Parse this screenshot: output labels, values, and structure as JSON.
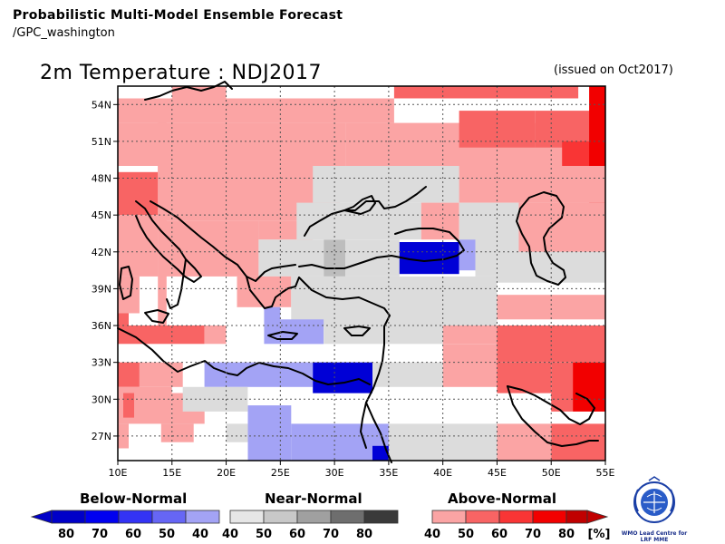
{
  "header": {
    "title": "Probabilistic Multi-Model Ensemble Forecast",
    "source": "/GPC_washington",
    "map_title": "2m Temperature : NDJ2017",
    "issued": "(issued on Oct2017)"
  },
  "map": {
    "lon_range": [
      10,
      55
    ],
    "lat_range": [
      25,
      55.5
    ],
    "lon_labels": [
      "10E",
      "15E",
      "20E",
      "25E",
      "30E",
      "35E",
      "40E",
      "45E",
      "50E",
      "55E"
    ],
    "lat_labels": [
      "54N",
      "51N",
      "48N",
      "45N",
      "42N",
      "39N",
      "36N",
      "33N",
      "30N",
      "27N"
    ],
    "colors": {
      "A40": "#fba4a4",
      "A50": "#f86464",
      "A60": "#f93535",
      "A70": "#f20000",
      "N40": "#dcdcdc",
      "N50": "#bdbdbd",
      "B40": "#a3a3f5",
      "B50": "#5757f2",
      "B70": "#0000d6"
    },
    "categories": [
      {
        "key": "A40",
        "label": "Above-Normal 40-50%"
      },
      {
        "key": "A50",
        "label": "Above-Normal 50-60%"
      },
      {
        "key": "A60",
        "label": "Above-Normal 60-70%"
      },
      {
        "key": "A70",
        "label": "Above-Normal 70-80%"
      },
      {
        "key": "N40",
        "label": "Near-Normal 40-50%"
      },
      {
        "key": "N50",
        "label": "Near-Normal 50-60%"
      },
      {
        "key": "B40",
        "label": "Below-Normal 40-50%"
      },
      {
        "key": "B50",
        "label": "Below-Normal 50-60%"
      },
      {
        "key": "B70",
        "label": "Below-Normal 70-80%"
      }
    ]
  },
  "legend": {
    "below": {
      "title": "Below-Normal",
      "labels": [
        "80",
        "70",
        "60",
        "50",
        "40"
      ],
      "colors": [
        "#0000c8",
        "#0000f0",
        "#3333f5",
        "#6666f5",
        "#a3a3f5"
      ]
    },
    "near": {
      "title": "Near-Normal",
      "labels": [
        "40",
        "50",
        "60",
        "70",
        "80"
      ],
      "colors": [
        "#e6e6e6",
        "#c8c8c8",
        "#a0a0a0",
        "#6e6e6e",
        "#3a3a3a"
      ]
    },
    "above": {
      "title": "Above-Normal",
      "labels": [
        "40",
        "50",
        "60",
        "70",
        "80"
      ],
      "colors": [
        "#fba4a4",
        "#f86464",
        "#f93535",
        "#f20000",
        "#c00000"
      ]
    },
    "unit": "[%]"
  },
  "logo": {
    "caption_line1": "WMO Lead Centre for",
    "caption_line2": "LRF MME"
  }
}
